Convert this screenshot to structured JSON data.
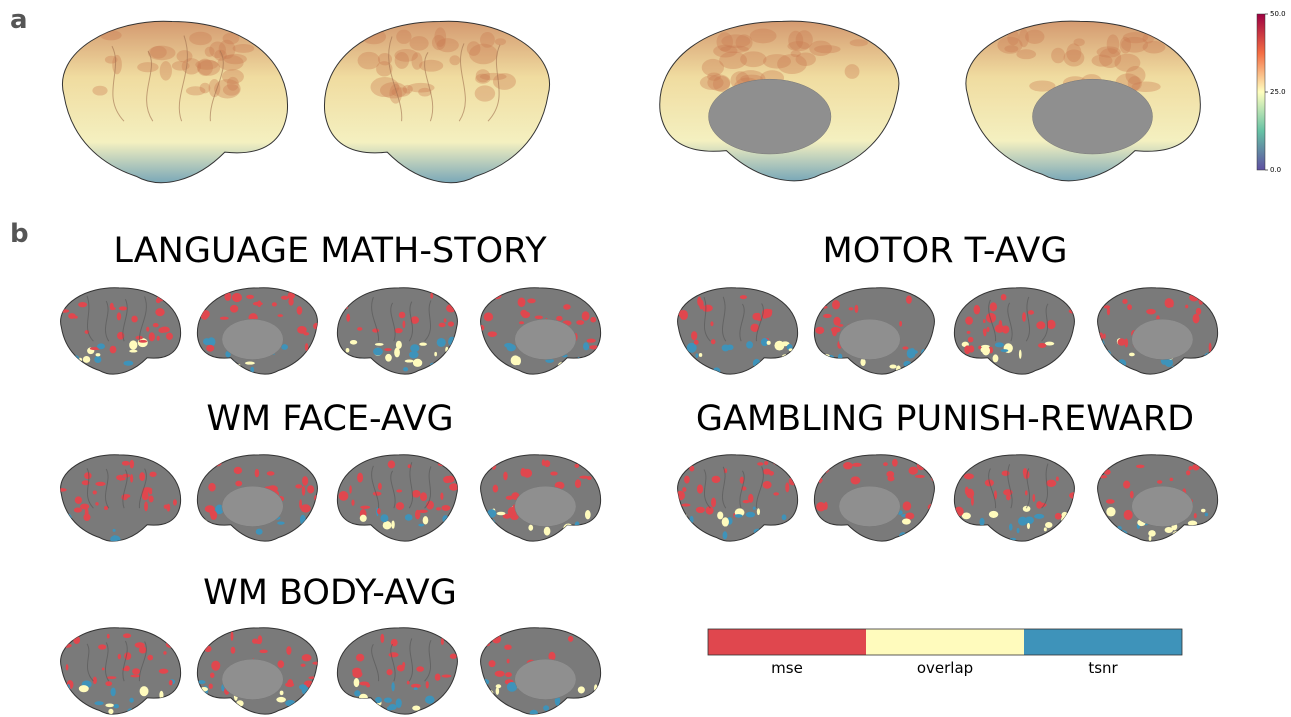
{
  "panels": [
    {
      "label": "a"
    },
    {
      "label": "b"
    }
  ],
  "colorbar": {
    "lim": [
      0,
      50
    ],
    "ticks": [
      {
        "value": 0,
        "label": "0.0"
      },
      {
        "value": 25,
        "label": "25.0"
      },
      {
        "value": 50,
        "label": "50.0"
      }
    ]
  },
  "maps": [
    {
      "title": "LANGUAGE MATH-STORY"
    },
    {
      "title": "MOTOR T-AVG"
    },
    {
      "title": "WM FACE-AVG"
    },
    {
      "title": "GAMBLING PUNISH-REWARD"
    },
    {
      "title": "WM BODY-AVG"
    }
  ],
  "legend": [
    {
      "name": "mse",
      "color": "#e0474e"
    },
    {
      "name": "overlap",
      "color": "#fffbbd"
    },
    {
      "name": "tsnr",
      "color": "#3e93ba"
    }
  ]
}
